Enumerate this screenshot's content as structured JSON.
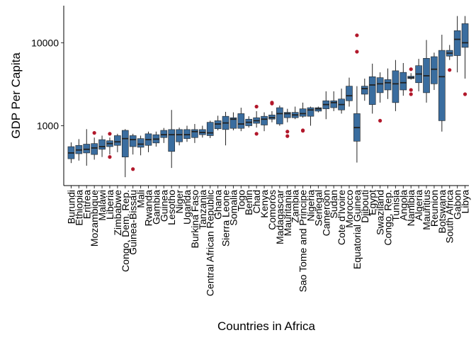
{
  "chart_data": {
    "type": "box",
    "x_label": "Countries in Africa",
    "y_label": "GDP Per Capita",
    "log_y": true,
    "color": "#3a6d9f",
    "outlier_color": "#b2182b",
    "ylim": [
      190,
      28000
    ],
    "yticks": [
      1000,
      10000
    ],
    "categories": [
      "Burundi",
      "Ethiopia",
      "Eritrea",
      "Mozambique",
      "Malawi",
      "Liberia",
      "Zimbabwe",
      "Congo, Dem. Rep.",
      "Guinea-Bissau",
      "Mali",
      "Rwanda",
      "Gambia",
      "Guinea",
      "Lesotho",
      "Niger",
      "Uganda",
      "Burkina Faso",
      "Tanzania",
      "Central African Republic",
      "Ghana",
      "Sierra Leone",
      "Somalia",
      "Togo",
      "Benin",
      "Chad",
      "Kenya",
      "Comoros",
      "Madagascar",
      "Mauritania",
      "Zambia",
      "Sao Tome and Principe",
      "Nigeria",
      "Senegal",
      "Cameroon",
      "Sudan",
      "Cote d'Ivoire",
      "Morocco",
      "Equatorial Guinea",
      "Djibouti",
      "Egypt",
      "Swaziland",
      "Congo, Rep.",
      "Tunisia",
      "Angola",
      "Namibia",
      "Algeria",
      "Mauritius",
      "Reunion",
      "Botswana",
      "South Africa",
      "Gabon",
      "Libya"
    ],
    "boxes": [
      {
        "min": 355,
        "q1": 400,
        "median": 470,
        "q3": 560,
        "max": 630,
        "outliers": []
      },
      {
        "min": 380,
        "q1": 460,
        "median": 510,
        "q3": 580,
        "max": 690,
        "outliers": []
      },
      {
        "min": 330,
        "q1": 470,
        "median": 520,
        "q3": 600,
        "max": 910,
        "outliers": []
      },
      {
        "min": 390,
        "q1": 450,
        "median": 540,
        "q3": 610,
        "max": 720,
        "outliers": [
          820
        ]
      },
      {
        "min": 420,
        "q1": 520,
        "median": 560,
        "q3": 680,
        "max": 760,
        "outliers": []
      },
      {
        "min": 450,
        "q1": 560,
        "median": 610,
        "q3": 660,
        "max": 720,
        "outliers": [
          800,
          420
        ]
      },
      {
        "min": 480,
        "q1": 580,
        "median": 640,
        "q3": 760,
        "max": 800,
        "outliers": []
      },
      {
        "min": 240,
        "q1": 420,
        "median": 700,
        "q3": 880,
        "max": 910,
        "outliers": []
      },
      {
        "min": 450,
        "q1": 560,
        "median": 680,
        "q3": 760,
        "max": 800,
        "outliers": [
          300
        ]
      },
      {
        "min": 440,
        "q1": 550,
        "median": 600,
        "q3": 700,
        "max": 760,
        "outliers": []
      },
      {
        "min": 480,
        "q1": 580,
        "median": 680,
        "q3": 800,
        "max": 850,
        "outliers": []
      },
      {
        "min": 560,
        "q1": 620,
        "median": 690,
        "q3": 780,
        "max": 850,
        "outliers": []
      },
      {
        "min": 620,
        "q1": 720,
        "median": 780,
        "q3": 880,
        "max": 940,
        "outliers": []
      },
      {
        "min": 310,
        "q1": 490,
        "median": 780,
        "q3": 900,
        "max": 1550,
        "outliers": []
      },
      {
        "min": 580,
        "q1": 640,
        "median": 780,
        "q3": 900,
        "max": 950,
        "outliers": []
      },
      {
        "min": 640,
        "q1": 700,
        "median": 780,
        "q3": 900,
        "max": 1000,
        "outliers": []
      },
      {
        "min": 620,
        "q1": 720,
        "median": 850,
        "q3": 900,
        "max": 1050,
        "outliers": []
      },
      {
        "min": 720,
        "q1": 780,
        "median": 830,
        "q3": 900,
        "max": 1000,
        "outliers": []
      },
      {
        "min": 710,
        "q1": 760,
        "median": 820,
        "q3": 1100,
        "max": 1150,
        "outliers": []
      },
      {
        "min": 880,
        "q1": 920,
        "median": 1050,
        "q3": 1150,
        "max": 1320,
        "outliers": []
      },
      {
        "min": 580,
        "q1": 900,
        "median": 1080,
        "q3": 1300,
        "max": 1470,
        "outliers": []
      },
      {
        "min": 880,
        "q1": 930,
        "median": 1200,
        "q3": 1250,
        "max": 1450,
        "outliers": []
      },
      {
        "min": 860,
        "q1": 930,
        "median": 1050,
        "q3": 1400,
        "max": 1650,
        "outliers": []
      },
      {
        "min": 950,
        "q1": 1000,
        "median": 1100,
        "q3": 1200,
        "max": 1300,
        "outliers": []
      },
      {
        "min": 950,
        "q1": 1070,
        "median": 1150,
        "q3": 1250,
        "max": 1500,
        "outliers": [
          1700,
          800
        ]
      },
      {
        "min": 860,
        "q1": 1020,
        "median": 1200,
        "q3": 1300,
        "max": 1450,
        "outliers": []
      },
      {
        "min": 1100,
        "q1": 1200,
        "median": 1250,
        "q3": 1350,
        "max": 1500,
        "outliers": [
          1900,
          1850
        ]
      },
      {
        "min": 1000,
        "q1": 1050,
        "median": 1400,
        "q3": 1650,
        "max": 1750,
        "outliers": []
      },
      {
        "min": 1100,
        "q1": 1250,
        "median": 1400,
        "q3": 1450,
        "max": 1600,
        "outliers": [
          850,
          750
        ]
      },
      {
        "min": 1200,
        "q1": 1250,
        "median": 1350,
        "q3": 1450,
        "max": 1700,
        "outliers": []
      },
      {
        "min": 1250,
        "q1": 1300,
        "median": 1400,
        "q3": 1600,
        "max": 1900,
        "outliers": [
          870,
          880
        ]
      },
      {
        "min": 1000,
        "q1": 1300,
        "median": 1550,
        "q3": 1650,
        "max": 1700,
        "outliers": []
      },
      {
        "min": 1450,
        "q1": 1500,
        "median": 1600,
        "q3": 1650,
        "max": 1700,
        "outliers": []
      },
      {
        "min": 1200,
        "q1": 1600,
        "median": 1800,
        "q3": 2000,
        "max": 2600,
        "outliers": []
      },
      {
        "min": 1500,
        "q1": 1650,
        "median": 1900,
        "q3": 2000,
        "max": 2600,
        "outliers": []
      },
      {
        "min": 1400,
        "q1": 1550,
        "median": 1800,
        "q3": 2100,
        "max": 2800,
        "outliers": []
      },
      {
        "min": 1700,
        "q1": 2000,
        "median": 2300,
        "q3": 3000,
        "max": 3800,
        "outliers": []
      },
      {
        "min": 360,
        "q1": 650,
        "median": 950,
        "q3": 1400,
        "max": 3000,
        "outliers": [
          7800,
          12300
        ]
      },
      {
        "min": 2000,
        "q1": 2400,
        "median": 2800,
        "q3": 3000,
        "max": 3700,
        "outliers": []
      },
      {
        "min": 1400,
        "q1": 1800,
        "median": 3100,
        "q3": 3900,
        "max": 5600,
        "outliers": []
      },
      {
        "min": 1900,
        "q1": 2500,
        "median": 3200,
        "q3": 3800,
        "max": 4400,
        "outliers": [
          1150
        ]
      },
      {
        "min": 2100,
        "q1": 2700,
        "median": 3300,
        "q3": 3600,
        "max": 4900,
        "outliers": []
      },
      {
        "min": 1500,
        "q1": 1900,
        "median": 3200,
        "q3": 4600,
        "max": 6200,
        "outliers": []
      },
      {
        "min": 2300,
        "q1": 2700,
        "median": 3300,
        "q3": 4400,
        "max": 5700,
        "outliers": []
      },
      {
        "min": 3600,
        "q1": 3700,
        "median": 3800,
        "q3": 3950,
        "max": 4300,
        "outliers": [
          4800,
          2700,
          2400
        ]
      },
      {
        "min": 2600,
        "q1": 3300,
        "median": 4200,
        "q3": 5300,
        "max": 6400,
        "outliers": []
      },
      {
        "min": 1900,
        "q1": 2500,
        "median": 4000,
        "q3": 6500,
        "max": 10800,
        "outliers": []
      },
      {
        "min": 2700,
        "q1": 3200,
        "median": 4800,
        "q3": 6800,
        "max": 7600,
        "outliers": []
      },
      {
        "min": 850,
        "q1": 1150,
        "median": 3900,
        "q3": 8100,
        "max": 12500,
        "outliers": []
      },
      {
        "min": 6200,
        "q1": 6900,
        "median": 7500,
        "q3": 8100,
        "max": 9400,
        "outliers": [
          4700
        ]
      },
      {
        "min": 4400,
        "q1": 7000,
        "median": 11000,
        "q3": 14000,
        "max": 21000,
        "outliers": []
      },
      {
        "min": 3700,
        "q1": 8800,
        "median": 10000,
        "q3": 17000,
        "max": 21000,
        "outliers": [
          2400
        ]
      }
    ]
  }
}
